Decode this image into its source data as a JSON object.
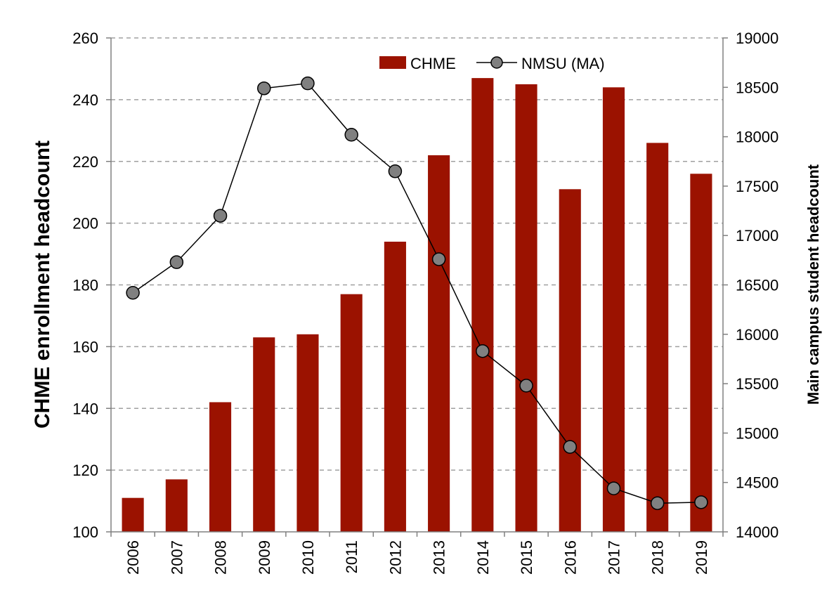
{
  "chart_data": {
    "type": "bar",
    "categories": [
      "2006",
      "2007",
      "2008",
      "2009",
      "2010",
      "2011",
      "2012",
      "2013",
      "2014",
      "2015",
      "2016",
      "2017",
      "2018",
      "2019"
    ],
    "series": [
      {
        "name": "CHME",
        "type": "bar",
        "axis": "left",
        "color": "#9b1200",
        "values": [
          111,
          117,
          142,
          163,
          164,
          177,
          194,
          222,
          247,
          245,
          211,
          244,
          226,
          216
        ]
      },
      {
        "name": "NMSU (MA)",
        "type": "line",
        "axis": "right",
        "color": "#000000",
        "marker_color": "#808080",
        "values": [
          16420,
          16730,
          17200,
          18490,
          18540,
          18020,
          17650,
          16760,
          15830,
          15480,
          14860,
          14440,
          14290,
          14300
        ]
      }
    ],
    "ylabel": "CHME enrollment headcount",
    "ylabel_right": "Main campus student headcount",
    "ylim": [
      100,
      260
    ],
    "ylim_right": [
      14000,
      19000
    ],
    "yticks": [
      "100",
      "120",
      "140",
      "160",
      "180",
      "200",
      "220",
      "240",
      "260"
    ],
    "yticks_right": [
      "14000",
      "14500",
      "15000",
      "15500",
      "16000",
      "16500",
      "17000",
      "17500",
      "18000",
      "18500",
      "19000"
    ],
    "grid": true,
    "legend": "top-center"
  }
}
